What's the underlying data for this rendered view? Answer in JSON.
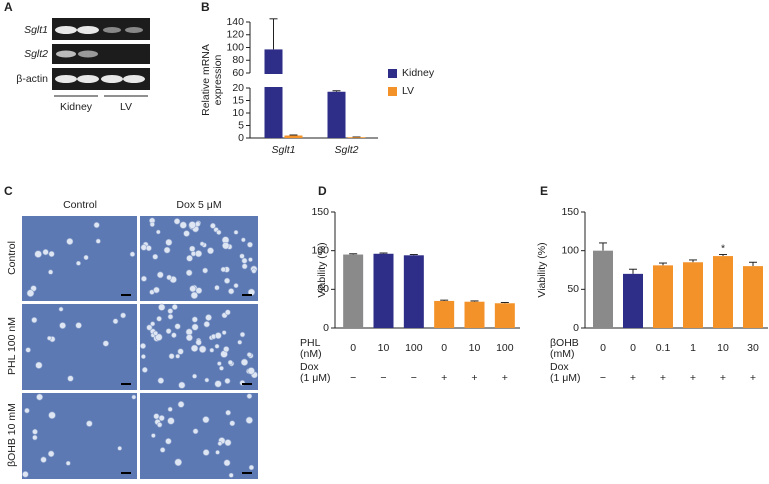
{
  "panel_A": {
    "letter": "A",
    "rows": [
      "Sglt1",
      "Sglt2",
      "β-actin"
    ],
    "groups": [
      "Kidney",
      "LV"
    ]
  },
  "panel_C": {
    "letter": "C",
    "columns": [
      "Control",
      "Dox 5 μM"
    ],
    "rows": [
      "Control",
      "PHL 100 nM",
      "βOHB 10 mM"
    ]
  },
  "chart_data": [
    {
      "type": "bar",
      "panel": "B",
      "ylabel": [
        "Relative mRNA",
        "expression"
      ],
      "categories": [
        "Sglt1",
        "Sglt2"
      ],
      "series": [
        {
          "name": "Kidney",
          "color": "#2e2d88",
          "values": [
            97,
            18.5
          ],
          "errors": [
            48,
            0.4
          ]
        },
        {
          "name": "LV",
          "color": "#f39229",
          "values": [
            1,
            0.3
          ],
          "errors": [
            0.2,
            0.1
          ]
        }
      ],
      "ylim": [
        0,
        140
      ],
      "ybreak": [
        20,
        60
      ],
      "yticks": [
        0,
        5,
        10,
        15,
        20,
        60,
        80,
        100,
        120,
        140
      ],
      "legend": "right"
    },
    {
      "type": "bar",
      "panel": "D",
      "ylabel": [
        "Viability (%)"
      ],
      "categories": [
        "0",
        "10",
        "100",
        "0",
        "10",
        "100"
      ],
      "values": [
        95,
        96,
        94,
        35,
        34,
        32
      ],
      "errors": [
        1,
        1,
        1,
        1,
        1,
        1
      ],
      "colors": [
        "#8a8a8a",
        "#2e2d88",
        "#2e2d88",
        "#f39229",
        "#f39229",
        "#f39229"
      ],
      "ylim": [
        0,
        150
      ],
      "yticks": [
        0,
        50,
        100,
        150
      ],
      "xlabel": [
        "PHL",
        "(nM)"
      ],
      "dox_label": [
        "Dox",
        "(1 μM)"
      ],
      "dox": [
        "−",
        "−",
        "−",
        "+",
        "+",
        "+"
      ]
    },
    {
      "type": "bar",
      "panel": "E",
      "ylabel": [
        "Viability (%)"
      ],
      "categories": [
        "0",
        "0",
        "0.1",
        "1",
        "10",
        "30"
      ],
      "values": [
        100,
        70,
        81,
        85,
        93,
        80
      ],
      "errors": [
        10,
        6,
        3,
        3,
        2,
        5
      ],
      "colors": [
        "#8a8a8a",
        "#2e2d88",
        "#f39229",
        "#f39229",
        "#f39229",
        "#f39229"
      ],
      "ylim": [
        0,
        150
      ],
      "yticks": [
        0,
        50,
        100,
        150
      ],
      "xlabel": [
        "βOHB",
        "(mM)"
      ],
      "dox_label": [
        "Dox",
        "(1 μM)"
      ],
      "dox": [
        "−",
        "+",
        "+",
        "+",
        "+",
        "+"
      ],
      "annotation": {
        "text": "*",
        "category": "10"
      }
    }
  ]
}
